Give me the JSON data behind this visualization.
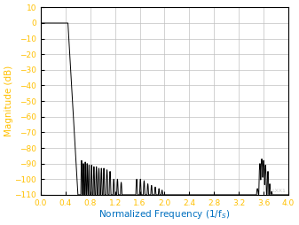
{
  "title": "",
  "xlabel": "Normalized Frequency (1/f$_S$)",
  "ylabel": "Magnitude (dB)",
  "xlim": [
    0,
    4
  ],
  "ylim": [
    -110,
    10
  ],
  "xticks": [
    0,
    0.4,
    0.8,
    1.2,
    1.6,
    2.0,
    2.4,
    2.8,
    3.2,
    3.6,
    4.0
  ],
  "xtick_labels": [
    "0",
    "0.4",
    "0.8",
    "1.2",
    "1.6",
    "2",
    "2.4",
    "2.8",
    "3.2",
    "3.6",
    "4"
  ],
  "yticks": [
    10,
    0,
    -10,
    -20,
    -30,
    -40,
    -50,
    -60,
    -70,
    -80,
    -90,
    -100,
    -110
  ],
  "line_color": "#000000",
  "grid_color": "#c0c0c0",
  "axis_label_color_x": "#0070c0",
  "axis_label_color_y": "#ffc000",
  "tick_label_color": "#ffc000",
  "background_color": "#ffffff",
  "watermark": "LXX1",
  "watermark_color": "#cccccc",
  "spine_color": "#000000"
}
